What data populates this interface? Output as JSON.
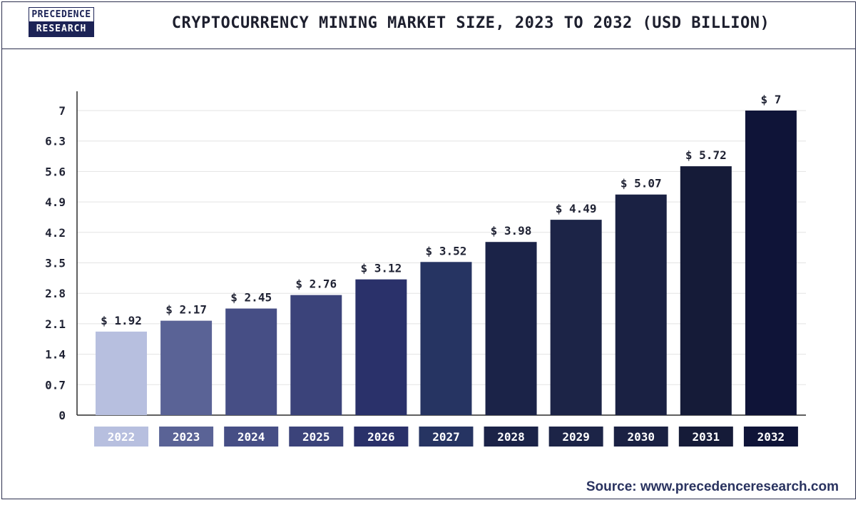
{
  "header": {
    "logo_top": "PRECEDENCE",
    "logo_bottom": "RESEARCH",
    "title": "CRYPTOCURRENCY MINING MARKET SIZE, 2023 TO 2032 (USD BILLION)"
  },
  "footer": {
    "source": "Source: www.precedenceresearch.com"
  },
  "chart_data": {
    "type": "bar",
    "title": "CRYPTOCURRENCY MINING MARKET SIZE, 2023 TO 2032 (USD BILLION)",
    "xlabel": "",
    "ylabel": "",
    "categories": [
      "2022",
      "2023",
      "2024",
      "2025",
      "2026",
      "2027",
      "2028",
      "2029",
      "2030",
      "2031",
      "2032"
    ],
    "values": [
      1.92,
      2.17,
      2.45,
      2.76,
      3.12,
      3.52,
      3.98,
      4.49,
      5.07,
      5.72,
      7
    ],
    "value_labels": [
      "$ 1.92",
      "$ 2.17",
      "$ 2.45",
      "$ 2.76",
      "$ 3.12",
      "$ 3.52",
      "$ 3.98",
      "$ 4.49",
      "$ 5.07",
      "$ 5.72",
      "$ 7"
    ],
    "bar_colors": [
      "#b7bfdf",
      "#5a6396",
      "#464e85",
      "#3b437a",
      "#2a316a",
      "#263462",
      "#1b2348",
      "#1c2447",
      "#1a2143",
      "#151b38",
      "#0f1438"
    ],
    "ylim": [
      0,
      7
    ],
    "yticks": [
      0,
      0.7,
      1.4,
      2.1,
      2.8,
      3.5,
      4.2,
      4.9,
      5.6,
      6.3,
      7
    ],
    "ytick_labels": [
      "0",
      "0.7",
      "1.4",
      "2.1",
      "2.8",
      "3.5",
      "4.2",
      "4.9",
      "5.6",
      "6.3",
      "7"
    ],
    "grid": true,
    "legend": "none"
  }
}
